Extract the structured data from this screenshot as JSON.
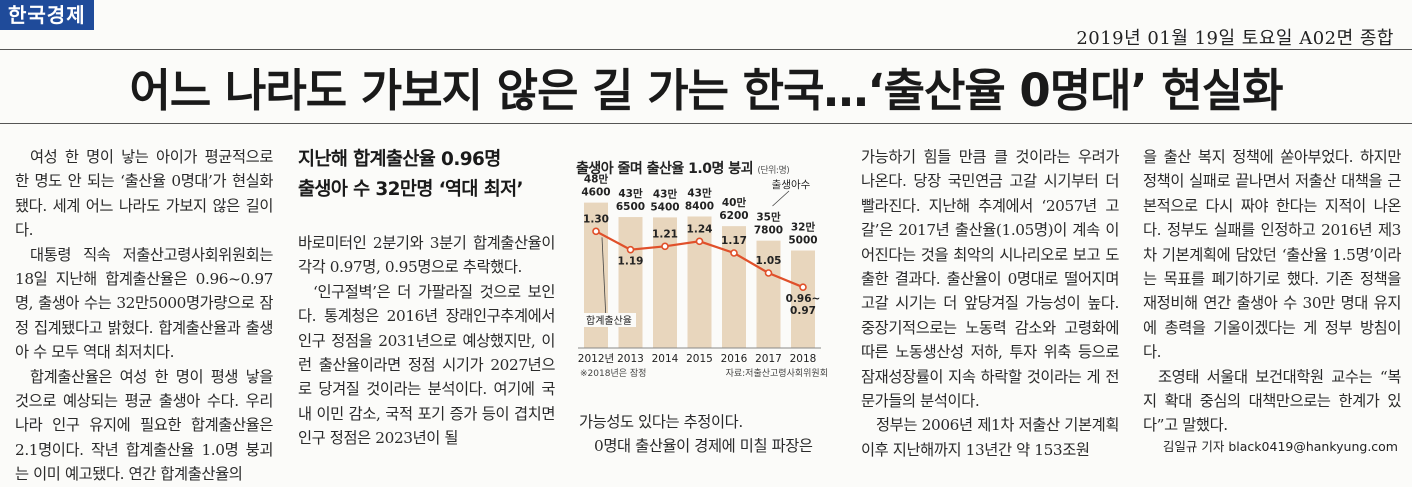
{
  "masthead": "한국경제",
  "dateline": "2019년 01월 19일 토요일 A02면 종합",
  "headline": "어느 나라도 가보지 않은 길 가는 한국…‘출산율 0명대’ 현실화",
  "col1": [
    "여성 한 명이 낳는 아이가 평균적으로 한 명도 안 되는 ‘출산율 0명대’가 현실화됐다. 세계 어느 나라도 가보지 않은 길이다.",
    "대통령 직속 저출산고령사회위원회는 18일 지난해 합계출산율은 0.96~0.97명, 출생아 수는 32만5000명가량으로 잠정 집계됐다고 밝혔다. 합계출산율과 출생아 수 모두 역대 최저치다.",
    "합계출산율은 여성 한 명이 평생 낳을 것으로 예상되는 평균 출생아 수다. 우리나라 인구 유지에 필요한 합계출산율은 2.1명이다. 작년 합계출산율 1.0명 붕괴는 이미 예고됐다. 연간 합계출산율의"
  ],
  "col2_subhead": [
    "지난해 합계출산율 0.96명",
    "출생아 수 32만명 ‘역대 최저’"
  ],
  "col2": [
    "바로미터인 2분기와 3분기 합계출산율이 각각 0.97명, 0.95명으로 추락했다.",
    "‘인구절벽’은 더 가팔라질 것으로 보인다. 통계청은 2016년 장래인구추계에서 인구 정점을 2031년으로 예상했지만, 이런 출산율이라면 정점 시기가 2027년으로 당겨질 것이라는 분석이다. 여기에 국내 이민 감소, 국적 포기 증가 등이 겹치면 인구 정점은 2023년이 될"
  ],
  "col3": [
    "가능성도 있다는 추정이다.",
    "0명대 출산율이 경제에 미칠 파장은"
  ],
  "col4": [
    "가능하기 힘들 만큼 클 것이라는 우려가 나온다. 당장 국민연금 고갈 시기부터 더 빨라진다. 지난해 추계에서 ‘2057년 고갈’은 2017년 출산율(1.05명)이 계속 이어진다는 것을 최악의 시나리오로 보고 도출한 결과다. 출산율이 0명대로 떨어지며 고갈 시기는 더 앞당겨질 가능성이 높다. 중장기적으로는 노동력 감소와 고령화에 따른 노동생산성 저하, 투자 위축 등으로 잠재성장률이 지속 하락할 것이라는 게 전문가들의 분석이다.",
    "정부는 2006년 제1차 저출산 기본계획 이후 지난해까지 13년간 약 153조원"
  ],
  "col5": [
    "을 출산 복지 정책에 쏟아부었다. 하지만 정책이 실패로 끝나면서 저출산 대책을 근본적으로 다시 짜야 한다는 지적이 나온다. 정부도 실패를 인정하고 2016년 제3차 기본계획에 담았던 ‘출산율 1.5명’이라는 목표를 폐기하기로 했다. 기존 정책을 재정비해 연간 출생아 수 30만 명대 유지에 총력을 기울이겠다는 게 정부 방침이다.",
    "조영태 서울대 보건대학원 교수는 “복지 확대 중심의 대책만으로는 한계가 있다”고 말했다."
  ],
  "byline": "김일규 기자  black0419@hankyung.com",
  "chart_data": {
    "type": "bar",
    "title": "출생아 줄며 출산율 1.0명 붕괴",
    "unit_note": "(단위:명)",
    "categories": [
      "2012년",
      "2013",
      "2014",
      "2015",
      "2016",
      "2017",
      "2018"
    ],
    "series": [
      {
        "name": "출생아수",
        "type": "bar",
        "values": [
          484600,
          436500,
          435400,
          438400,
          406200,
          357800,
          325000
        ],
        "labels": [
          [
            "48만",
            "4600"
          ],
          [
            "43만",
            "6500"
          ],
          [
            "43만",
            "5400"
          ],
          [
            "43만",
            "8400"
          ],
          [
            "40만",
            "6200"
          ],
          [
            "35만",
            "7800"
          ],
          [
            "32만",
            "5000"
          ]
        ],
        "color": "#e8d6bd"
      },
      {
        "name": "합계출산율",
        "type": "line",
        "values": [
          1.3,
          1.19,
          1.21,
          1.24,
          1.17,
          1.05,
          0.965
        ],
        "labels": [
          "1.30",
          "1.19",
          "1.21",
          "1.24",
          "1.17",
          "1.05",
          "0.96~\n0.97"
        ],
        "color": "#e0502a"
      }
    ],
    "footnote": "※2018년은 잠정",
    "source": "자료:저출산고령사회위원회"
  }
}
